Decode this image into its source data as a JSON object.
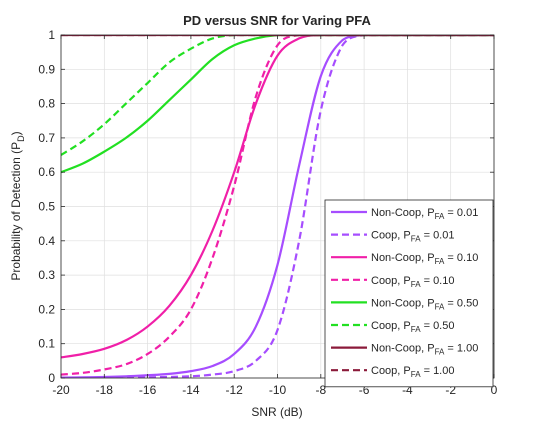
{
  "chart_data": {
    "type": "line",
    "title": "PD versus SNR for Varing PFA",
    "xlabel": "SNR (dB)",
    "ylabel": {
      "main": "Probability of Detection (P",
      "sub": "D",
      "close": ")"
    },
    "xlim": [
      -20,
      0
    ],
    "ylim": [
      0,
      1
    ],
    "xticks": [
      -20,
      -18,
      -16,
      -14,
      -12,
      -10,
      -8,
      -6,
      -4,
      -2,
      0
    ],
    "yticks": [
      0,
      0.1,
      0.2,
      0.3,
      0.4,
      0.5,
      0.6,
      0.7,
      0.8,
      0.9,
      1
    ],
    "ytick_labels": [
      "0",
      "0.1",
      "0.2",
      "0.3",
      "0.4",
      "0.5",
      "0.6",
      "0.7",
      "0.8",
      "0.9",
      "1"
    ],
    "grid": true,
    "legend_position": "bottom-right",
    "x": [
      -20,
      -19,
      -18,
      -17,
      -16,
      -15,
      -14,
      -13,
      -12,
      -11,
      -10,
      -9,
      -8,
      -7,
      -6,
      -5,
      -4,
      -3,
      -2,
      -1,
      0
    ],
    "series": [
      {
        "name": {
          "prefix": "Non-Coop, P",
          "sub": "FA",
          "suffix": " = 0.01"
        },
        "color": "#a64dff",
        "dash": "solid",
        "values": [
          0.001,
          0.002,
          0.003,
          0.005,
          0.008,
          0.012,
          0.02,
          0.035,
          0.07,
          0.15,
          0.33,
          0.62,
          0.88,
          0.985,
          1,
          1,
          1,
          1,
          1,
          1,
          1
        ]
      },
      {
        "name": {
          "prefix": "Coop, P",
          "sub": "FA",
          "suffix": " = 0.01"
        },
        "color": "#a64dff",
        "dash": "dashed",
        "values": [
          0.0,
          0.0,
          0.001,
          0.001,
          0.002,
          0.003,
          0.005,
          0.01,
          0.02,
          0.05,
          0.14,
          0.4,
          0.78,
          0.97,
          1,
          1,
          1,
          1,
          1,
          1,
          1
        ]
      },
      {
        "name": {
          "prefix": "Non-Coop, P",
          "sub": "FA",
          "suffix": " = 0.10"
        },
        "color": "#f01fa8",
        "dash": "solid",
        "values": [
          0.06,
          0.07,
          0.085,
          0.11,
          0.15,
          0.21,
          0.3,
          0.43,
          0.6,
          0.8,
          0.94,
          0.99,
          1,
          1,
          1,
          1,
          1,
          1,
          1,
          1,
          1
        ]
      },
      {
        "name": {
          "prefix": "Coop, P",
          "sub": "FA",
          "suffix": " = 0.10"
        },
        "color": "#f01fa8",
        "dash": "dashed",
        "values": [
          0.01,
          0.015,
          0.025,
          0.04,
          0.07,
          0.12,
          0.2,
          0.35,
          0.56,
          0.82,
          0.97,
          1,
          1,
          1,
          1,
          1,
          1,
          1,
          1,
          1,
          1
        ]
      },
      {
        "name": {
          "prefix": "Non-Coop, P",
          "sub": "FA",
          "suffix": " = 0.50"
        },
        "color": "#22e022",
        "dash": "solid",
        "values": [
          0.6,
          0.625,
          0.66,
          0.7,
          0.75,
          0.81,
          0.87,
          0.93,
          0.97,
          0.99,
          1,
          1,
          1,
          1,
          1,
          1,
          1,
          1,
          1,
          1,
          1
        ]
      },
      {
        "name": {
          "prefix": "Coop, P",
          "sub": "FA",
          "suffix": " = 0.50"
        },
        "color": "#22e022",
        "dash": "dashed",
        "values": [
          0.65,
          0.69,
          0.74,
          0.8,
          0.86,
          0.92,
          0.96,
          0.99,
          1,
          1,
          1,
          1,
          1,
          1,
          1,
          1,
          1,
          1,
          1,
          1,
          1
        ]
      },
      {
        "name": {
          "prefix": "Non-Coop, P",
          "sub": "FA",
          "suffix": " = 1.00"
        },
        "color": "#8b1a3a",
        "dash": "solid",
        "values": [
          1,
          1,
          1,
          1,
          1,
          1,
          1,
          1,
          1,
          1,
          1,
          1,
          1,
          1,
          1,
          1,
          1,
          1,
          1,
          1,
          1
        ]
      },
      {
        "name": {
          "prefix": "Coop, P",
          "sub": "FA",
          "suffix": " = 1.00"
        },
        "color": "#8b1a3a",
        "dash": "dashed",
        "values": [
          1,
          1,
          1,
          1,
          1,
          1,
          1,
          1,
          1,
          1,
          1,
          1,
          1,
          1,
          1,
          1,
          1,
          1,
          1,
          1,
          1
        ]
      }
    ]
  }
}
